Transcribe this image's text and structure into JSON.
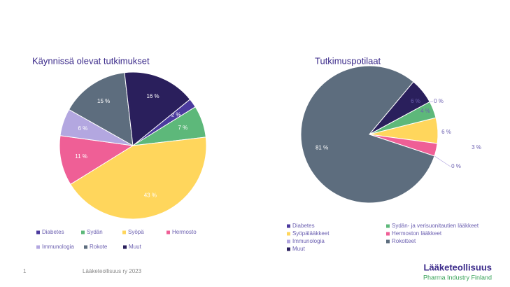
{
  "chart_data": [
    {
      "type": "pie",
      "title": "Käynnissä olevat tutkimukset",
      "categories": [
        "Diabetes",
        "Sydän",
        "Syöpä",
        "Hermosto",
        "Immunologia",
        "Rokote",
        "Muut"
      ],
      "values": [
        2,
        7,
        43,
        11,
        6,
        15,
        16
      ],
      "value_labels": [
        "2 %",
        "7 %",
        "43 %",
        "11 %",
        "6 %",
        "15 %",
        "16 %"
      ],
      "colors": [
        "#4b3a9e",
        "#5db87a",
        "#ffd65c",
        "#ef5f96",
        "#b3a7e0",
        "#5d6d7e",
        "#2a1f5c"
      ]
    },
    {
      "type": "pie",
      "title": "Tutkimuspotilaat",
      "categories": [
        "Diabetes",
        "Sydän- ja verisuonitautien lääkkeet",
        "Syöpälääkkeet",
        "Hermoston lääkkeet",
        "Immunologia",
        "Rokotteet",
        "Muut"
      ],
      "values": [
        0,
        4,
        6,
        3,
        0,
        81,
        6
      ],
      "value_labels": [
        "0 %",
        "4 %",
        "6 %",
        "3 %",
        "0 %",
        "81 %",
        "6 %"
      ],
      "colors": [
        "#4b3a9e",
        "#5db87a",
        "#ffd65c",
        "#ef5f96",
        "#b3a7e0",
        "#5d6d7e",
        "#2a1f5c"
      ]
    }
  ],
  "footer": {
    "page": "1",
    "source": "Lääketeollisuus ry 2023",
    "logo": "Lääketeollisuus",
    "logo_sub": "Pharma Industry Finland"
  }
}
